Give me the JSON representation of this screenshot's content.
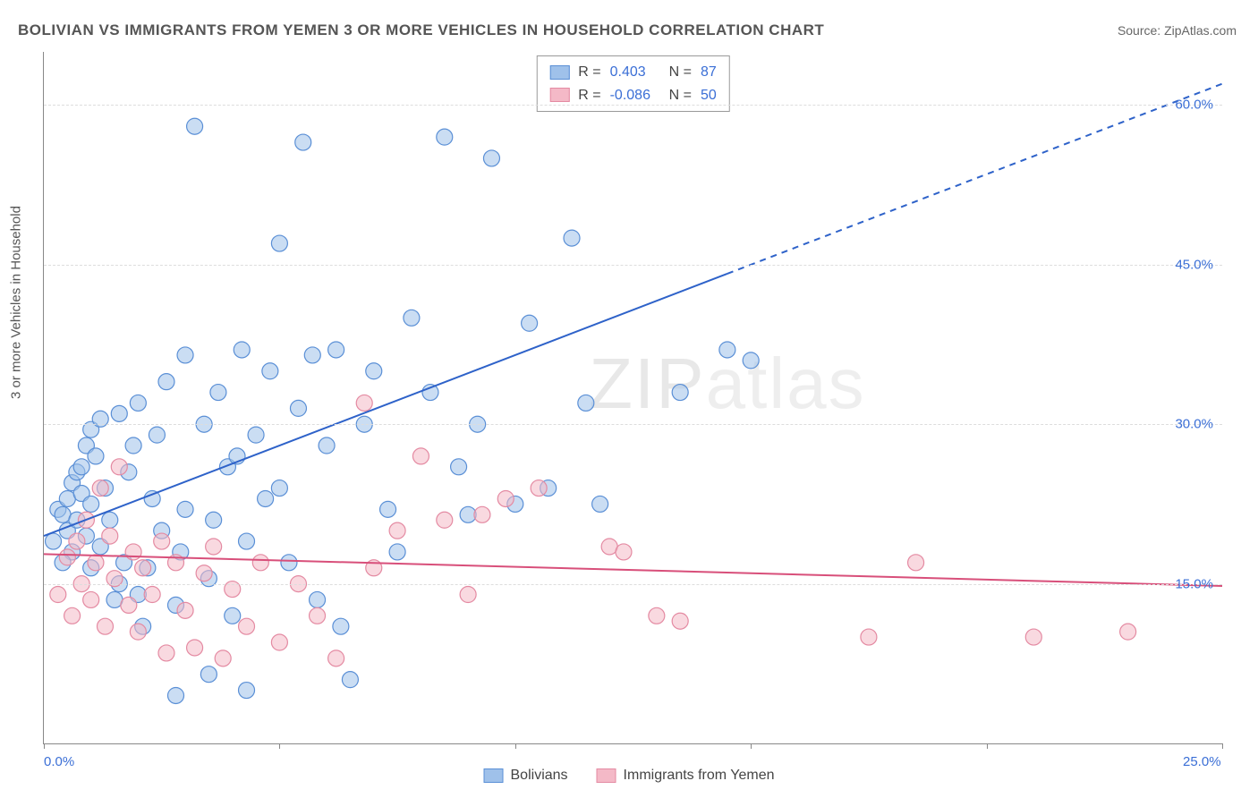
{
  "title": "BOLIVIAN VS IMMIGRANTS FROM YEMEN 3 OR MORE VEHICLES IN HOUSEHOLD CORRELATION CHART",
  "source": "Source: ZipAtlas.com",
  "y_axis_label": "3 or more Vehicles in Household",
  "watermark": {
    "part1": "ZIP",
    "part2": "atlas"
  },
  "chart": {
    "type": "scatter",
    "xlim": [
      0,
      25
    ],
    "ylim": [
      0,
      65
    ],
    "x_ticks": [
      0,
      5,
      10,
      15,
      20,
      25
    ],
    "x_tick_labels": {
      "0": "0.0%",
      "25": "25.0%"
    },
    "y_grid_values": [
      15,
      30,
      45,
      60
    ],
    "y_tick_labels": {
      "15": "15.0%",
      "30": "30.0%",
      "45": "45.0%",
      "60": "60.0%"
    },
    "background_color": "#ffffff",
    "grid_color": "#dddddd",
    "axis_color": "#888888",
    "label_color": "#555555",
    "tick_label_color": "#3b6fd6",
    "title_fontsize": 17,
    "label_fontsize": 15
  },
  "legend_stats": {
    "series1": {
      "r_label": "R =",
      "r_value": "0.403",
      "n_label": "N =",
      "n_value": "87"
    },
    "series2": {
      "r_label": "R =",
      "r_value": "-0.086",
      "n_label": "N =",
      "n_value": "50"
    }
  },
  "series": [
    {
      "name": "Bolivians",
      "fill_color": "#9fc1ea",
      "stroke_color": "#5a8fd6",
      "fill_opacity": 0.55,
      "marker_radius": 9,
      "trend": {
        "x1": 0,
        "y1": 19.5,
        "x2": 25,
        "y2": 62,
        "solid_until_x": 14.5,
        "line_color": "#2e62c9",
        "line_width": 2
      },
      "points": [
        [
          0.2,
          19
        ],
        [
          0.3,
          22
        ],
        [
          0.4,
          21.5
        ],
        [
          0.5,
          20
        ],
        [
          0.5,
          23
        ],
        [
          0.6,
          24.5
        ],
        [
          0.6,
          18
        ],
        [
          0.7,
          25.5
        ],
        [
          0.7,
          21
        ],
        [
          0.8,
          23.5
        ],
        [
          0.8,
          26
        ],
        [
          0.9,
          19.5
        ],
        [
          0.9,
          28
        ],
        [
          1.0,
          22.5
        ],
        [
          1.0,
          29.5
        ],
        [
          1.0,
          16.5
        ],
        [
          1.1,
          27
        ],
        [
          1.2,
          30.5
        ],
        [
          1.2,
          18.5
        ],
        [
          1.3,
          24
        ],
        [
          1.4,
          21
        ],
        [
          1.5,
          13.5
        ],
        [
          1.6,
          31
        ],
        [
          1.7,
          17
        ],
        [
          1.8,
          25.5
        ],
        [
          1.9,
          28
        ],
        [
          2.0,
          14
        ],
        [
          2.0,
          32
        ],
        [
          2.2,
          16.5
        ],
        [
          2.3,
          23
        ],
        [
          2.4,
          29
        ],
        [
          2.5,
          20
        ],
        [
          2.6,
          34
        ],
        [
          2.8,
          13
        ],
        [
          3.0,
          36.5
        ],
        [
          3.0,
          22
        ],
        [
          3.2,
          58
        ],
        [
          3.4,
          30
        ],
        [
          3.5,
          15.5
        ],
        [
          3.7,
          33
        ],
        [
          3.9,
          26
        ],
        [
          4.0,
          12
        ],
        [
          4.2,
          37
        ],
        [
          4.3,
          19
        ],
        [
          4.5,
          29
        ],
        [
          4.8,
          35
        ],
        [
          5.0,
          47
        ],
        [
          5.0,
          24
        ],
        [
          5.2,
          17
        ],
        [
          5.4,
          31.5
        ],
        [
          5.5,
          56.5
        ],
        [
          5.7,
          36.5
        ],
        [
          5.8,
          13.5
        ],
        [
          6.0,
          28
        ],
        [
          6.2,
          37
        ],
        [
          6.5,
          6
        ],
        [
          6.8,
          30
        ],
        [
          7.0,
          35
        ],
        [
          7.3,
          22
        ],
        [
          7.8,
          40
        ],
        [
          8.2,
          33
        ],
        [
          8.5,
          57
        ],
        [
          8.8,
          26
        ],
        [
          9.0,
          21.5
        ],
        [
          9.2,
          30
        ],
        [
          9.5,
          55
        ],
        [
          10.0,
          22.5
        ],
        [
          10.3,
          39.5
        ],
        [
          10.7,
          24
        ],
        [
          11.2,
          47.5
        ],
        [
          11.5,
          32
        ],
        [
          11.8,
          22.5
        ],
        [
          13.5,
          33
        ],
        [
          14.5,
          37
        ],
        [
          15.0,
          36
        ],
        [
          2.8,
          4.5
        ],
        [
          3.5,
          6.5
        ],
        [
          4.3,
          5
        ],
        [
          1.6,
          15
        ],
        [
          2.1,
          11
        ],
        [
          2.9,
          18
        ],
        [
          3.6,
          21
        ],
        [
          4.1,
          27
        ],
        [
          4.7,
          23
        ],
        [
          6.3,
          11
        ],
        [
          7.5,
          18
        ],
        [
          0.4,
          17
        ]
      ]
    },
    {
      "name": "Immigrants from Yemen",
      "fill_color": "#f4b9c7",
      "stroke_color": "#e48aa2",
      "fill_opacity": 0.55,
      "marker_radius": 9,
      "trend": {
        "x1": 0,
        "y1": 17.8,
        "x2": 25,
        "y2": 14.8,
        "solid_until_x": 25,
        "line_color": "#d84f7a",
        "line_width": 2
      },
      "points": [
        [
          0.3,
          14
        ],
        [
          0.5,
          17.5
        ],
        [
          0.6,
          12
        ],
        [
          0.7,
          19
        ],
        [
          0.8,
          15
        ],
        [
          0.9,
          21
        ],
        [
          1.0,
          13.5
        ],
        [
          1.1,
          17
        ],
        [
          1.2,
          24
        ],
        [
          1.3,
          11
        ],
        [
          1.4,
          19.5
        ],
        [
          1.5,
          15.5
        ],
        [
          1.6,
          26
        ],
        [
          1.8,
          13
        ],
        [
          1.9,
          18
        ],
        [
          2.0,
          10.5
        ],
        [
          2.1,
          16.5
        ],
        [
          2.3,
          14
        ],
        [
          2.5,
          19
        ],
        [
          2.6,
          8.5
        ],
        [
          2.8,
          17
        ],
        [
          3.0,
          12.5
        ],
        [
          3.2,
          9
        ],
        [
          3.4,
          16
        ],
        [
          3.6,
          18.5
        ],
        [
          3.8,
          8
        ],
        [
          4.0,
          14.5
        ],
        [
          4.3,
          11
        ],
        [
          4.6,
          17
        ],
        [
          5.0,
          9.5
        ],
        [
          5.4,
          15
        ],
        [
          5.8,
          12
        ],
        [
          6.2,
          8
        ],
        [
          6.8,
          32
        ],
        [
          7.0,
          16.5
        ],
        [
          7.5,
          20
        ],
        [
          8.0,
          27
        ],
        [
          8.5,
          21
        ],
        [
          9.0,
          14
        ],
        [
          9.3,
          21.5
        ],
        [
          9.8,
          23
        ],
        [
          10.5,
          24
        ],
        [
          12.0,
          18.5
        ],
        [
          12.3,
          18
        ],
        [
          13.0,
          12
        ],
        [
          13.5,
          11.5
        ],
        [
          17.5,
          10
        ],
        [
          18.5,
          17
        ],
        [
          21.0,
          10
        ],
        [
          23.0,
          10.5
        ]
      ]
    }
  ],
  "bottom_legend": {
    "label1": "Bolivians",
    "label2": "Immigrants from Yemen"
  }
}
